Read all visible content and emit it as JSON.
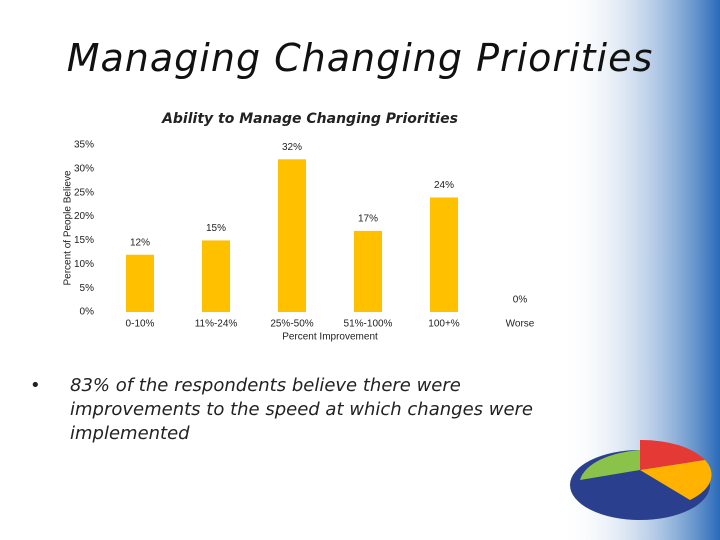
{
  "title": "Managing Changing Priorities",
  "chart_data": {
    "type": "bar",
    "title": "Ability to Manage Changing Priorities",
    "y_label": "Percent of People Believe",
    "x_label": "Percent Improvement",
    "categories": [
      "0-10%",
      "11%-24%",
      "25%-50%",
      "51%-100%",
      "100+%",
      "Worse"
    ],
    "values": [
      12,
      15,
      32,
      17,
      24,
      0
    ],
    "value_labels": [
      "12%",
      "15%",
      "32%",
      "17%",
      "24%",
      "0%"
    ],
    "color": "#ffc000",
    "ylim": [
      0,
      35
    ],
    "yticks": [
      {
        "value": 0,
        "label": "0%"
      },
      {
        "value": 5,
        "label": "5%"
      },
      {
        "value": 10,
        "label": "10%"
      },
      {
        "value": 15,
        "label": "15%"
      },
      {
        "value": 20,
        "label": "20%"
      },
      {
        "value": 25,
        "label": "25%"
      },
      {
        "value": 30,
        "label": "30%"
      },
      {
        "value": 35,
        "label": "35%"
      }
    ],
    "grid": false
  },
  "bullet": "83% of the respondents believe there were improvements to the speed at which changes were implemented"
}
